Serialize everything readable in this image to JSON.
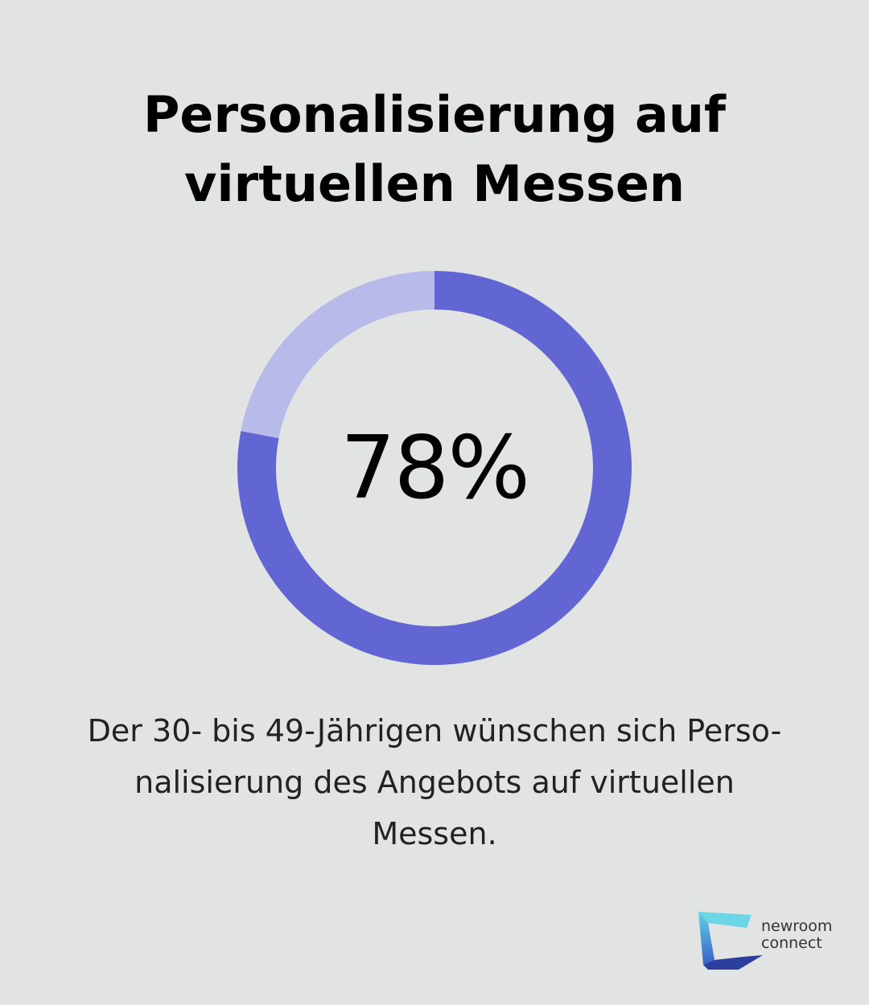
{
  "title_lines": [
    "Personalisierung auf",
    "virtuellen Messen"
  ],
  "chart_data": {
    "type": "pie",
    "value": 78,
    "value_label": "78%",
    "max": 100,
    "colors": {
      "filled": "#6266d2",
      "remaining": "#b8bbea"
    }
  },
  "caption_lines": [
    "Der 30- bis 49-Jährigen wünschen sich Perso-",
    "nalisierung des Angebots auf virtuellen",
    "Messen."
  ],
  "logo": {
    "lines": [
      "newroom",
      "connect"
    ],
    "colors": {
      "cyan": "#5fd3e6",
      "blue": "#3b5fc4",
      "navy": "#2a3f9e"
    }
  }
}
